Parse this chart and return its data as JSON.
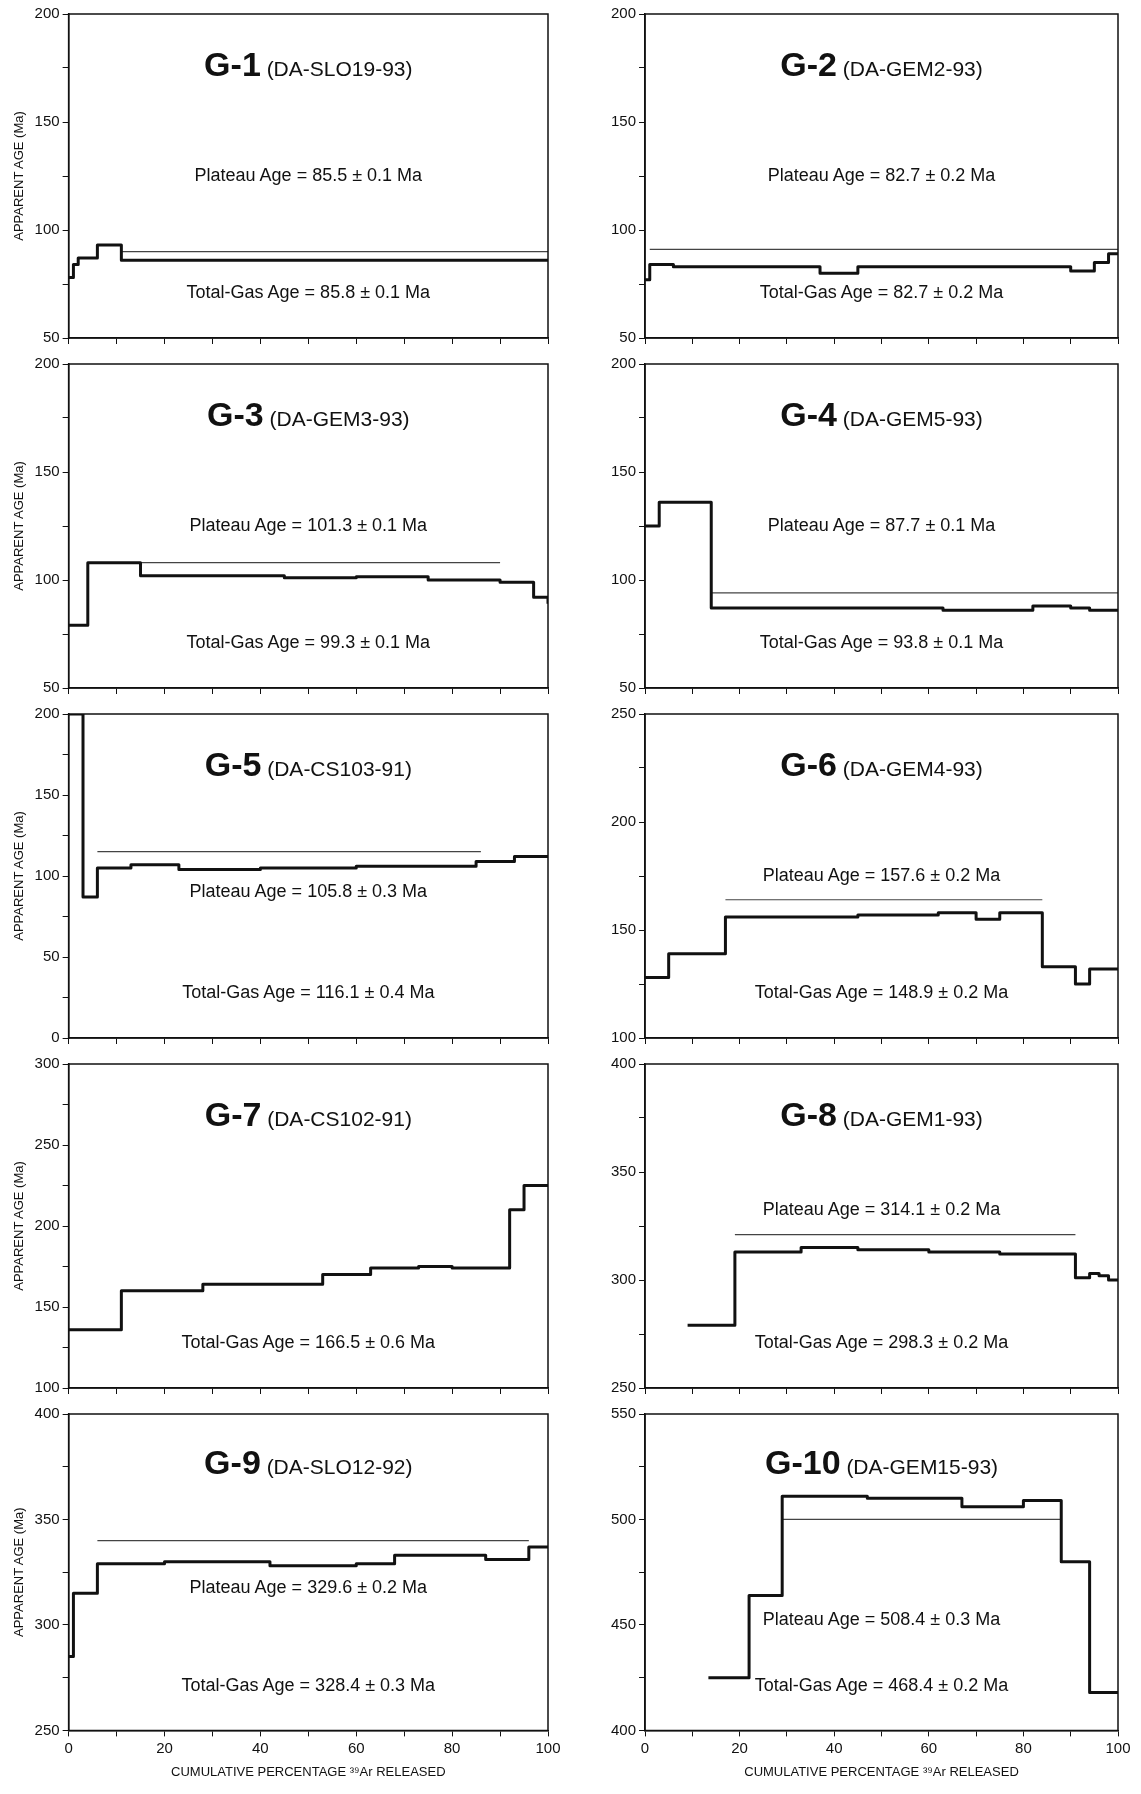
{
  "chart_data": [
    {
      "type": "step",
      "title": "G-1",
      "subtitle": "(DA-SLO19-93)",
      "ylabel": "APPARENT AGE (Ma)",
      "xlim": [
        0,
        100
      ],
      "ylim": [
        50,
        200
      ],
      "xticks": [
        0,
        {
          "value": 10,
          "label": null
        },
        20,
        {
          "value": 30,
          "label": null
        },
        40,
        {
          "value": 50,
          "label": null
        },
        60,
        {
          "value": 70,
          "label": null
        },
        80,
        {
          "value": 90,
          "label": null
        },
        100
      ],
      "yticks": [
        50,
        {
          "value": 75,
          "label": null
        },
        100,
        {
          "value": 125,
          "label": null
        },
        150,
        {
          "value": 175,
          "label": null
        },
        200
      ],
      "tick_labels": "y",
      "legend": false,
      "grid": false,
      "x": [
        0,
        1,
        2,
        6,
        11,
        100
      ],
      "series": [
        {
          "color": "#111111",
          "values": [
            78,
            84,
            87,
            93,
            86,
            86
          ]
        },
        {
          "type": "line",
          "color": "#444444",
          "x": [
            11,
            100
          ],
          "values": [
            90,
            90
          ]
        }
      ],
      "annotations": [
        "Plateau Age = 85.5 ± 0.1 Ma",
        "Total-Gas Age = 85.8 ± 0.1 Ma"
      ]
    },
    {
      "type": "step",
      "title": "G-2",
      "subtitle": "(DA-GEM2-93)",
      "xlim": [
        0,
        100
      ],
      "ylim": [
        50,
        200
      ],
      "xticks": [
        0,
        {
          "value": 10,
          "label": null
        },
        20,
        {
          "value": 30,
          "label": null
        },
        40,
        {
          "value": 50,
          "label": null
        },
        60,
        {
          "value": 70,
          "label": null
        },
        80,
        {
          "value": 90,
          "label": null
        },
        100
      ],
      "yticks": [
        50,
        {
          "value": 75,
          "label": null
        },
        100,
        {
          "value": 125,
          "label": null
        },
        150,
        {
          "value": 175,
          "label": null
        },
        200
      ],
      "tick_labels": "y",
      "legend": false,
      "grid": false,
      "x": [
        0,
        1,
        6,
        37,
        45,
        90,
        95,
        98,
        100
      ],
      "series": [
        {
          "color": "#111111",
          "values": [
            77,
            84,
            83,
            80,
            83,
            81,
            85,
            89,
            89
          ]
        },
        {
          "type": "line",
          "color": "#444444",
          "x": [
            1,
            100
          ],
          "values": [
            91,
            91
          ]
        }
      ],
      "annotations": [
        "Plateau Age = 82.7 ± 0.2 Ma",
        "Total-Gas Age = 82.7 ± 0.2 Ma"
      ]
    },
    {
      "type": "step",
      "title": "G-3",
      "subtitle": "(DA-GEM3-93)",
      "ylabel": "APPARENT AGE (Ma)",
      "xlim": [
        0,
        100
      ],
      "ylim": [
        50,
        200
      ],
      "xticks": [
        0,
        {
          "value": 10,
          "label": null
        },
        20,
        {
          "value": 30,
          "label": null
        },
        40,
        {
          "value": 50,
          "label": null
        },
        60,
        {
          "value": 70,
          "label": null
        },
        80,
        {
          "value": 90,
          "label": null
        },
        100
      ],
      "yticks": [
        50,
        {
          "value": 75,
          "label": null
        },
        100,
        {
          "value": 125,
          "label": null
        },
        150,
        {
          "value": 175,
          "label": null
        },
        200
      ],
      "tick_labels": "y",
      "legend": false,
      "grid": false,
      "x": [
        0,
        4,
        15,
        45,
        60,
        75,
        90,
        97,
        100
      ],
      "series": [
        {
          "color": "#111111",
          "values": [
            79,
            108,
            102,
            101,
            101.5,
            100,
            99,
            92,
            89
          ]
        },
        {
          "type": "line",
          "color": "#444444",
          "x": [
            15,
            90
          ],
          "values": [
            108,
            108
          ]
        }
      ],
      "annotations": [
        "Plateau Age = 101.3 ± 0.1 Ma",
        "Total-Gas Age = 99.3 ± 0.1 Ma"
      ]
    },
    {
      "type": "step",
      "title": "G-4",
      "subtitle": "(DA-GEM5-93)",
      "xlim": [
        0,
        100
      ],
      "ylim": [
        50,
        200
      ],
      "xticks": [
        0,
        {
          "value": 10,
          "label": null
        },
        20,
        {
          "value": 30,
          "label": null
        },
        40,
        {
          "value": 50,
          "label": null
        },
        60,
        {
          "value": 70,
          "label": null
        },
        80,
        {
          "value": 90,
          "label": null
        },
        100
      ],
      "yticks": [
        50,
        {
          "value": 75,
          "label": null
        },
        100,
        {
          "value": 125,
          "label": null
        },
        150,
        {
          "value": 175,
          "label": null
        },
        200
      ],
      "tick_labels": "y",
      "legend": false,
      "grid": false,
      "x": [
        0,
        3,
        14,
        63,
        82,
        90,
        94,
        100
      ],
      "series": [
        {
          "color": "#111111",
          "values": [
            125,
            136,
            87,
            86,
            88,
            87,
            86,
            86
          ]
        },
        {
          "type": "line",
          "color": "#444444",
          "x": [
            14,
            100
          ],
          "values": [
            94,
            94
          ]
        }
      ],
      "annotations": [
        "Plateau Age = 87.7 ± 0.1 Ma",
        "Total-Gas Age = 93.8 ± 0.1 Ma"
      ]
    },
    {
      "type": "step",
      "title": "G-5",
      "subtitle": "(DA-CS103-91)",
      "ylabel": "APPARENT AGE (Ma)",
      "xlim": [
        0,
        100
      ],
      "ylim": [
        0,
        200
      ],
      "xticks": [
        0,
        {
          "value": 10,
          "label": null
        },
        20,
        {
          "value": 30,
          "label": null
        },
        40,
        {
          "value": 50,
          "label": null
        },
        60,
        {
          "value": 70,
          "label": null
        },
        80,
        {
          "value": 90,
          "label": null
        },
        100
      ],
      "yticks": [
        0,
        {
          "value": 25,
          "label": null
        },
        50,
        {
          "value": 75,
          "label": null
        },
        100,
        {
          "value": 125,
          "label": null
        },
        150,
        {
          "value": 175,
          "label": null
        },
        200
      ],
      "tick_labels": "y",
      "legend": false,
      "grid": false,
      "x": [
        0,
        3,
        6,
        13,
        23,
        40,
        60,
        85,
        93,
        100
      ],
      "series": [
        {
          "color": "#111111",
          "values": [
            200,
            87,
            105,
            107,
            104,
            105,
            106,
            109,
            112,
            112
          ]
        },
        {
          "type": "line",
          "color": "#444444",
          "x": [
            6,
            86
          ],
          "values": [
            115,
            115
          ]
        }
      ],
      "annotations": [
        "Plateau Age = 105.8 ± 0.3 Ma",
        "Total-Gas Age = 116.1 ± 0.4 Ma"
      ]
    },
    {
      "type": "step",
      "title": "G-6",
      "subtitle": "(DA-GEM4-93)",
      "xlim": [
        0,
        100
      ],
      "ylim": [
        100,
        250
      ],
      "xticks": [
        0,
        {
          "value": 10,
          "label": null
        },
        20,
        {
          "value": 30,
          "label": null
        },
        40,
        {
          "value": 50,
          "label": null
        },
        60,
        {
          "value": 70,
          "label": null
        },
        80,
        {
          "value": 90,
          "label": null
        },
        100
      ],
      "yticks": [
        100,
        {
          "value": 125,
          "label": null
        },
        150,
        {
          "value": 175,
          "label": null
        },
        200,
        {
          "value": 225,
          "label": null
        },
        250
      ],
      "tick_labels": "y",
      "legend": false,
      "grid": false,
      "x": [
        0,
        5,
        17,
        45,
        62,
        70,
        75,
        84,
        91,
        94,
        100
      ],
      "series": [
        {
          "color": "#111111",
          "values": [
            128,
            139,
            156,
            157,
            158,
            155,
            158,
            133,
            125,
            132,
            132
          ]
        },
        {
          "type": "line",
          "color": "#444444",
          "x": [
            17,
            84
          ],
          "values": [
            164,
            164
          ]
        }
      ],
      "annotations": [
        "Plateau Age = 157.6 ± 0.2 Ma",
        "Total-Gas Age = 148.9 ± 0.2 Ma"
      ]
    },
    {
      "type": "step",
      "title": "G-7",
      "subtitle": "(DA-CS102-91)",
      "ylabel": "APPARENT AGE (Ma)",
      "xlim": [
        0,
        100
      ],
      "ylim": [
        100,
        300
      ],
      "xticks": [
        0,
        {
          "value": 10,
          "label": null
        },
        20,
        {
          "value": 30,
          "label": null
        },
        40,
        {
          "value": 50,
          "label": null
        },
        60,
        {
          "value": 70,
          "label": null
        },
        80,
        {
          "value": 90,
          "label": null
        },
        100
      ],
      "yticks": [
        100,
        {
          "value": 125,
          "label": null
        },
        150,
        {
          "value": 175,
          "label": null
        },
        200,
        {
          "value": 225,
          "label": null
        },
        250,
        {
          "value": 275,
          "label": null
        },
        300
      ],
      "tick_labels": "y",
      "legend": false,
      "grid": false,
      "x": [
        0,
        11,
        28,
        53,
        63,
        73,
        80,
        92,
        95,
        100
      ],
      "series": [
        {
          "color": "#111111",
          "values": [
            136,
            160,
            164,
            170,
            174,
            175,
            174,
            210,
            225,
            225
          ]
        }
      ],
      "annotations": [
        "Total-Gas Age = 166.5 ± 0.6 Ma"
      ]
    },
    {
      "type": "step",
      "title": "G-8",
      "subtitle": "(DA-GEM1-93)",
      "xlim": [
        0,
        100
      ],
      "ylim": [
        250,
        400
      ],
      "xticks": [
        0,
        {
          "value": 10,
          "label": null
        },
        20,
        {
          "value": 30,
          "label": null
        },
        40,
        {
          "value": 50,
          "label": null
        },
        60,
        {
          "value": 70,
          "label": null
        },
        80,
        {
          "value": 90,
          "label": null
        },
        100
      ],
      "yticks": [
        250,
        {
          "value": 275,
          "label": null
        },
        300,
        {
          "value": 325,
          "label": null
        },
        350,
        {
          "value": 375,
          "label": null
        },
        400
      ],
      "tick_labels": "y",
      "legend": false,
      "grid": false,
      "x": [
        9,
        19,
        33,
        45,
        60,
        75,
        91,
        94,
        96,
        98,
        100
      ],
      "series": [
        {
          "color": "#111111",
          "values": [
            279,
            313,
            315,
            314,
            313,
            312,
            301,
            303,
            302,
            300,
            300
          ]
        },
        {
          "type": "line",
          "color": "#444444",
          "x": [
            19,
            91
          ],
          "values": [
            321,
            321
          ]
        }
      ],
      "annotations": [
        "Plateau Age = 314.1 ± 0.2 Ma",
        "Total-Gas Age = 298.3 ± 0.2 Ma"
      ]
    },
    {
      "type": "step",
      "title": "G-9",
      "subtitle": "(DA-SLO12-92)",
      "ylabel": "APPARENT AGE (Ma)",
      "xlabel": "CUMULATIVE PERCENTAGE ³⁹Ar RELEASED",
      "xlim": [
        0,
        100
      ],
      "ylim": [
        250,
        400
      ],
      "xticks": [
        0,
        {
          "value": 10,
          "label": null
        },
        20,
        {
          "value": 30,
          "label": null
        },
        40,
        {
          "value": 50,
          "label": null
        },
        60,
        {
          "value": 70,
          "label": null
        },
        80,
        {
          "value": 90,
          "label": null
        },
        100
      ],
      "yticks": [
        250,
        {
          "value": 275,
          "label": null
        },
        300,
        {
          "value": 325,
          "label": null
        },
        350,
        {
          "value": 375,
          "label": null
        },
        400
      ],
      "legend": false,
      "grid": false,
      "x": [
        0,
        1,
        6,
        20,
        42,
        60,
        68,
        87,
        96,
        100
      ],
      "series": [
        {
          "color": "#111111",
          "values": [
            285,
            315,
            329,
            330,
            328,
            329,
            333,
            331,
            337,
            337
          ]
        },
        {
          "type": "line",
          "color": "#444444",
          "x": [
            6,
            96
          ],
          "values": [
            340,
            340
          ]
        }
      ],
      "annotations": [
        "Plateau Age = 329.6 ± 0.2 Ma",
        "Total-Gas Age = 328.4 ± 0.3 Ma"
      ]
    },
    {
      "type": "step",
      "title": "G-10",
      "subtitle": "(DA-GEM15-93)",
      "xlabel": "CUMULATIVE PERCENTAGE ³⁹Ar RELEASED",
      "xlim": [
        0,
        100
      ],
      "ylim": [
        400,
        550
      ],
      "xticks": [
        0,
        {
          "value": 10,
          "label": null
        },
        20,
        {
          "value": 30,
          "label": null
        },
        40,
        {
          "value": 50,
          "label": null
        },
        60,
        {
          "value": 70,
          "label": null
        },
        80,
        {
          "value": 90,
          "label": null
        },
        100
      ],
      "yticks": [
        400,
        {
          "value": 425,
          "label": null
        },
        450,
        {
          "value": 475,
          "label": null
        },
        500,
        {
          "value": 525,
          "label": null
        },
        550
      ],
      "legend": false,
      "grid": false,
      "x": [
        13.4,
        22,
        29,
        47,
        67,
        80,
        88,
        94,
        100
      ],
      "series": [
        {
          "color": "#111111",
          "values": [
            425,
            464,
            511,
            510,
            506,
            509,
            480,
            418,
            418
          ]
        },
        {
          "type": "line",
          "color": "#444444",
          "x": [
            29,
            88
          ],
          "values": [
            500,
            500
          ]
        }
      ],
      "annotations": [
        "Plateau Age = 508.4 ± 0.3 Ma",
        "Total-Gas Age = 468.4 ± 0.2 Ma"
      ]
    }
  ]
}
